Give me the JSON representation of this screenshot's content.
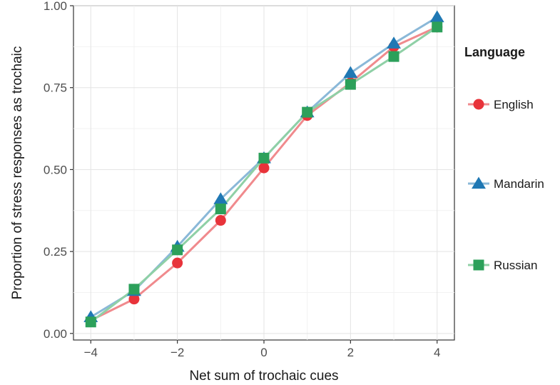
{
  "chart_data": {
    "type": "line",
    "xlabel": "Net sum of trochaic cues",
    "ylabel": "Proportion of stress responses as trochaic",
    "xlim": [
      -4.4,
      4.4
    ],
    "ylim": [
      -0.02,
      1.0
    ],
    "x_ticks": [
      -4,
      -2,
      0,
      2,
      4
    ],
    "x_tick_labels": [
      "−4",
      "−2",
      "0",
      "2",
      "4"
    ],
    "y_ticks": [
      0,
      0.25,
      0.5,
      0.75,
      1.0
    ],
    "y_tick_labels": [
      "0.00",
      "0.25",
      "0.50",
      "0.75",
      "1.00"
    ],
    "grid": true,
    "legend_title": "Language",
    "legend_position": "right",
    "x": [
      -4,
      -3,
      -2,
      -1,
      0,
      1,
      2,
      3,
      4
    ],
    "series": [
      {
        "name": "English",
        "marker": "circle",
        "color": "#e8333a",
        "line_color": "#f08a8d",
        "values": [
          0.04,
          0.105,
          0.215,
          0.345,
          0.505,
          0.665,
          0.765,
          0.875,
          0.935
        ]
      },
      {
        "name": "Mandarin",
        "marker": "triangle",
        "color": "#1f78b4",
        "line_color": "#8ab8d8",
        "values": [
          0.05,
          0.13,
          0.265,
          0.41,
          0.535,
          0.675,
          0.795,
          0.885,
          0.965
        ]
      },
      {
        "name": "Russian",
        "marker": "square",
        "color": "#2ca05a",
        "line_color": "#8fd0a6",
        "values": [
          0.035,
          0.135,
          0.255,
          0.38,
          0.535,
          0.675,
          0.76,
          0.845,
          0.935
        ]
      }
    ]
  }
}
